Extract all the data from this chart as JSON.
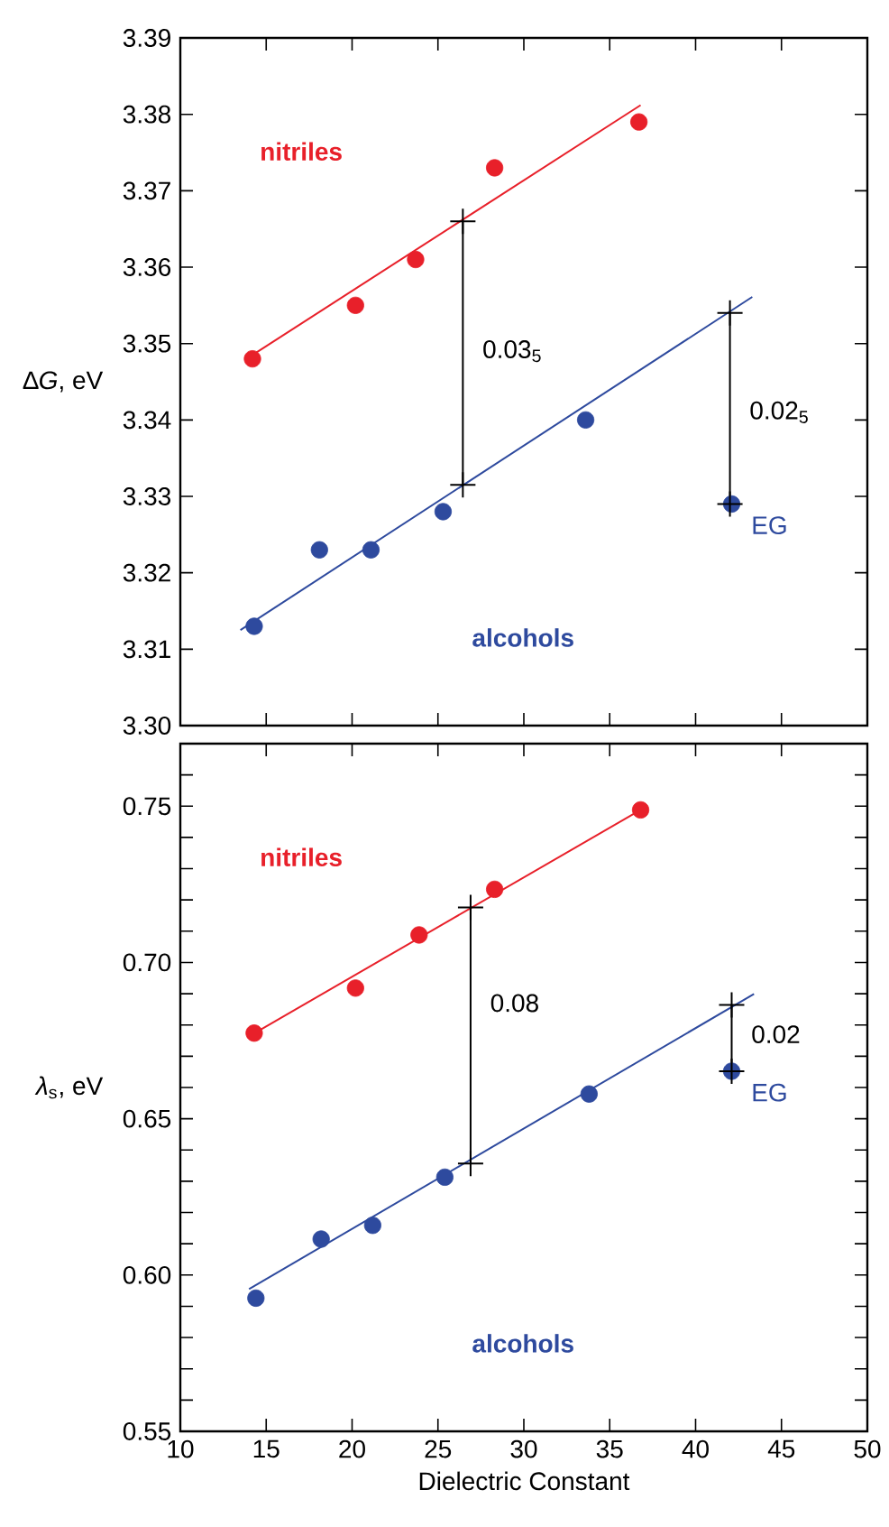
{
  "chart_data": [
    {
      "type": "scatter",
      "ylabel": "∆*G*, eV",
      "xlim": [
        10,
        50
      ],
      "xticks": [
        10,
        15,
        20,
        25,
        30,
        35,
        40,
        45,
        50
      ],
      "ylim": [
        3.3,
        3.39
      ],
      "yticks": [
        {
          "value": 3.3,
          "label": "3.30"
        },
        3.31,
        3.32,
        3.33,
        3.34,
        3.35,
        3.36,
        3.37,
        3.38,
        3.39
      ],
      "tick_labels": "y",
      "grid": false,
      "legend": false,
      "series": [
        {
          "name": "nitriles",
          "color": "#e8202a",
          "marker": "circle",
          "x": [
            14.2,
            20.2,
            23.7,
            28.3,
            36.7
          ],
          "values": [
            3.348,
            3.355,
            3.361,
            3.373,
            3.379
          ]
        },
        {
          "type": "line",
          "color": "#e8202a",
          "marker": "none",
          "x": [
            14.2,
            36.8
          ],
          "values": [
            3.3485,
            3.3812
          ]
        },
        {
          "name": "alcohols",
          "color": "#2e4a9e",
          "marker": "circle",
          "x": [
            14.3,
            18.1,
            21.1,
            25.3,
            33.6,
            42.1
          ],
          "values": [
            3.313,
            3.323,
            3.323,
            3.328,
            3.34,
            3.329
          ]
        },
        {
          "type": "line",
          "color": "#2e4a9e",
          "marker": "none",
          "x": [
            13.5,
            43.3
          ],
          "values": [
            3.3125,
            3.3561
          ]
        },
        {
          "type": "line",
          "color": "#000000",
          "marker": "cross",
          "x": [
            26.45,
            26.45
          ],
          "values": [
            3.366,
            3.3315
          ]
        },
        {
          "type": "line",
          "color": "#000000",
          "marker": "cross",
          "x": [
            42.0,
            42.0
          ],
          "values": [
            3.354,
            3.329
          ]
        }
      ],
      "annotations": [
        {
          "text": "0.03$_{5}$",
          "x": 26.45,
          "y": 3.349
        },
        {
          "text": "0.02$_{5}$",
          "x": 42.0,
          "y": 3.341
        },
        {
          "text": "EG",
          "x": 42.1,
          "y": 3.329
        }
      ]
    },
    {
      "type": "scatter",
      "xlabel": "Dielectric Constant",
      "ylabel": "*λ*$_{s}$, eV",
      "xlim": [
        10,
        50
      ],
      "xticks": [
        10,
        15,
        20,
        25,
        30,
        35,
        40,
        45,
        50
      ],
      "ylim": [
        0.55,
        0.77
      ],
      "yticks": [
        0.55,
        {
          "value": 0.56,
          "label": null
        },
        {
          "value": 0.57,
          "label": null
        },
        {
          "value": 0.58,
          "label": null
        },
        {
          "value": 0.59,
          "label": null
        },
        {
          "value": 0.6,
          "label": "0.60"
        },
        {
          "value": 0.61,
          "label": null
        },
        {
          "value": 0.62,
          "label": null
        },
        {
          "value": 0.63,
          "label": null
        },
        {
          "value": 0.64,
          "label": null
        },
        0.65,
        {
          "value": 0.66,
          "label": null
        },
        {
          "value": 0.67,
          "label": null
        },
        {
          "value": 0.68,
          "label": null
        },
        {
          "value": 0.69,
          "label": null
        },
        {
          "value": 0.7,
          "label": "0.70"
        },
        {
          "value": 0.71,
          "label": null
        },
        {
          "value": 0.72,
          "label": null
        },
        {
          "value": 0.73,
          "label": null
        },
        {
          "value": 0.74,
          "label": null
        },
        0.75,
        {
          "value": 0.76,
          "label": null
        }
      ],
      "grid": false,
      "legend": false,
      "series": [
        {
          "name": "nitriles",
          "color": "#e8202a",
          "marker": "circle",
          "x": [
            14.3,
            20.2,
            23.9,
            28.3,
            36.8
          ],
          "values": [
            0.6774,
            0.6918,
            0.7088,
            0.7234,
            0.7488
          ]
        },
        {
          "type": "line",
          "color": "#e8202a",
          "marker": "none",
          "x": [
            14.2,
            36.8
          ],
          "values": [
            0.677,
            0.7488
          ]
        },
        {
          "name": "alcohols",
          "color": "#2e4a9e",
          "marker": "circle",
          "x": [
            14.4,
            18.2,
            21.2,
            25.4,
            33.8,
            42.1
          ],
          "values": [
            0.5926,
            0.6115,
            0.6159,
            0.6313,
            0.6579,
            0.6652
          ]
        },
        {
          "type": "line",
          "color": "#2e4a9e",
          "marker": "none",
          "x": [
            14.0,
            43.4
          ],
          "values": [
            0.5955,
            0.6899
          ]
        },
        {
          "type": "line",
          "color": "#000000",
          "marker": "cross",
          "x": [
            26.9,
            26.9
          ],
          "values": [
            0.7176,
            0.6357
          ]
        },
        {
          "type": "line",
          "color": "#000000",
          "marker": "cross",
          "x": [
            42.1,
            42.1
          ],
          "values": [
            0.6864,
            0.6652
          ]
        }
      ],
      "annotations": [
        {
          "text": "0.08",
          "x": 26.9,
          "y": 0.687
        },
        {
          "text": "0.02",
          "x": 42.1,
          "y": 0.677
        },
        {
          "text": "EG",
          "x": 42.1,
          "y": 0.6652
        }
      ]
    }
  ]
}
